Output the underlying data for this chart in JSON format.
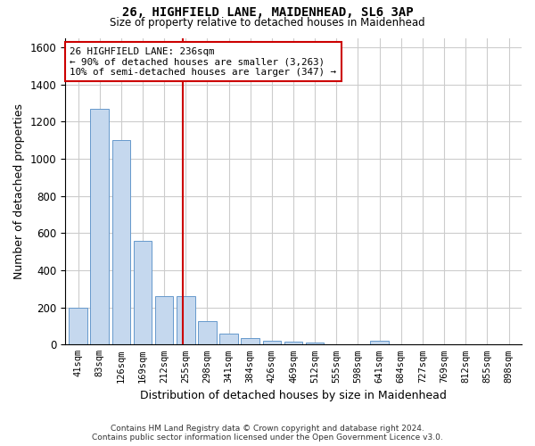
{
  "title_line1": "26, HIGHFIELD LANE, MAIDENHEAD, SL6 3AP",
  "title_line2": "Size of property relative to detached houses in Maidenhead",
  "xlabel": "Distribution of detached houses by size in Maidenhead",
  "ylabel": "Number of detached properties",
  "categories": [
    "41sqm",
    "83sqm",
    "126sqm",
    "169sqm",
    "212sqm",
    "255sqm",
    "298sqm",
    "341sqm",
    "384sqm",
    "426sqm",
    "469sqm",
    "512sqm",
    "555sqm",
    "598sqm",
    "641sqm",
    "684sqm",
    "727sqm",
    "769sqm",
    "812sqm",
    "855sqm",
    "898sqm"
  ],
  "values": [
    197,
    1270,
    1100,
    557,
    262,
    262,
    125,
    60,
    35,
    22,
    15,
    10,
    2,
    2,
    20,
    2,
    0,
    0,
    0,
    0,
    0
  ],
  "bar_color": "#c5d8ee",
  "bar_edge_color": "#6699cc",
  "vline_x_index": 4.85,
  "vline_color": "#cc0000",
  "annotation_text": "26 HIGHFIELD LANE: 236sqm\n← 90% of detached houses are smaller (3,263)\n10% of semi-detached houses are larger (347) →",
  "annotation_box_color": "#ffffff",
  "annotation_box_edge": "#cc0000",
  "ylim": [
    0,
    1650
  ],
  "yticks": [
    0,
    200,
    400,
    600,
    800,
    1000,
    1200,
    1400,
    1600
  ],
  "footer_line1": "Contains HM Land Registry data © Crown copyright and database right 2024.",
  "footer_line2": "Contains public sector information licensed under the Open Government Licence v3.0.",
  "bg_color": "#ffffff",
  "plot_bg_color": "#ffffff",
  "grid_color": "#cccccc"
}
